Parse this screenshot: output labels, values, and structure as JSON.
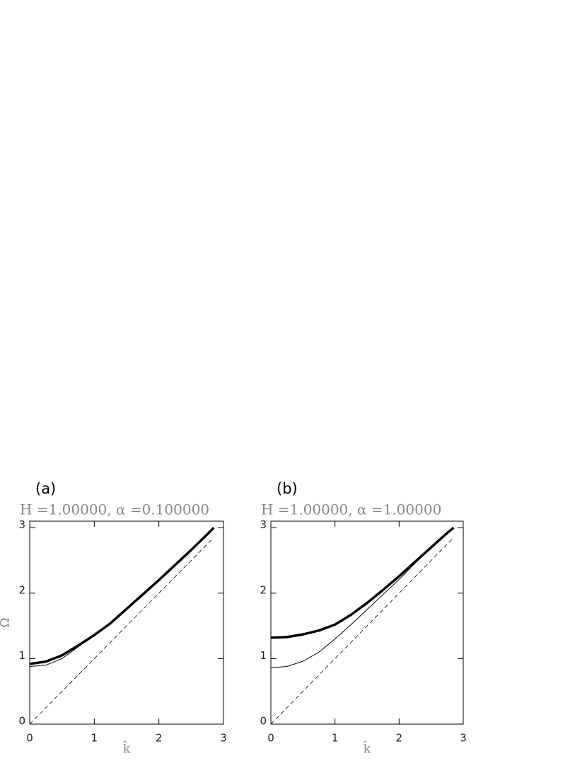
{
  "chart_data": [
    {
      "type": "line",
      "panel_label": "(a)",
      "subtitle": "H =1.00000, α =0.100000",
      "x_label": "k̂",
      "y_label": "Ω",
      "x": [
        0,
        0.25,
        0.5,
        0.75,
        1,
        1.25,
        1.5,
        1.75,
        2,
        2.25,
        2.5,
        2.75,
        2.85
      ],
      "series": [
        {
          "color": "#000000",
          "width": 3.5,
          "values": [
            0.92,
            0.955,
            1.05,
            1.2,
            1.36,
            1.54,
            1.76,
            1.98,
            2.2,
            2.43,
            2.66,
            2.9,
            3.0
          ]
        },
        {
          "color": "#000000",
          "width": 1,
          "values": [
            0.88,
            0.9,
            1.0,
            1.18,
            1.35,
            1.54,
            1.76,
            1.98,
            2.2,
            2.43,
            2.66,
            2.9,
            3.0
          ]
        },
        {
          "color": "#000000",
          "width": 0.8,
          "dashed": true,
          "values": [
            0,
            0.25,
            0.5,
            0.75,
            1,
            1.25,
            1.5,
            1.75,
            2,
            2.25,
            2.5,
            2.75,
            2.85
          ]
        }
      ],
      "xlim": [
        0,
        3
      ],
      "ylim": [
        0,
        3.1
      ],
      "xticks": [
        0,
        1,
        2,
        3
      ],
      "yticks": [
        0,
        1,
        2,
        3
      ]
    },
    {
      "type": "line",
      "panel_label": "(b)",
      "subtitle": "H =1.00000, α =1.00000",
      "x_label": "k̂",
      "y_label": "Ω",
      "x": [
        0,
        0.25,
        0.5,
        0.75,
        1,
        1.25,
        1.5,
        1.75,
        2,
        2.25,
        2.5,
        2.75,
        2.85
      ],
      "series": [
        {
          "color": "#000000",
          "width": 3.5,
          "values": [
            1.32,
            1.33,
            1.37,
            1.43,
            1.52,
            1.67,
            1.85,
            2.05,
            2.26,
            2.48,
            2.7,
            2.92,
            3.0
          ]
        },
        {
          "color": "#000000",
          "width": 1,
          "values": [
            0.86,
            0.88,
            0.96,
            1.1,
            1.3,
            1.52,
            1.75,
            1.98,
            2.21,
            2.46,
            2.69,
            2.92,
            3.0
          ]
        },
        {
          "color": "#000000",
          "width": 0.8,
          "dashed": true,
          "values": [
            0,
            0.25,
            0.5,
            0.75,
            1,
            1.25,
            1.5,
            1.75,
            2,
            2.25,
            2.5,
            2.75,
            2.85
          ]
        }
      ],
      "xlim": [
        0,
        3
      ],
      "ylim": [
        0,
        3.1
      ],
      "xticks": [
        0,
        1,
        2,
        3
      ],
      "yticks": [
        0,
        1,
        2,
        3
      ]
    }
  ]
}
